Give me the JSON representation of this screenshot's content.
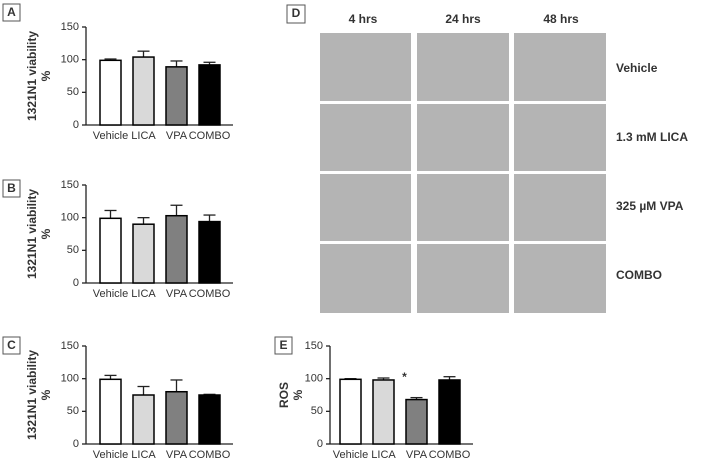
{
  "chart_data": [
    {
      "type": "bar",
      "panel": "A",
      "ylabel": [
        "1321N1 viability",
        "%"
      ],
      "categories": [
        "Vehicle",
        "LICA",
        "VPA",
        "COMBO"
      ],
      "values": [
        99,
        104,
        89,
        92
      ],
      "errors": [
        2,
        9,
        9,
        4
      ],
      "colors": [
        "#ffffff",
        "#d9d9d9",
        "#808080",
        "#000000"
      ],
      "ylim": [
        0,
        150
      ],
      "yticks": [
        0,
        50,
        100,
        150
      ]
    },
    {
      "type": "bar",
      "panel": "B",
      "ylabel": [
        "1321N1 viability",
        "%"
      ],
      "categories": [
        "Vehicle",
        "LICA",
        "VPA",
        "COMBO"
      ],
      "values": [
        99,
        90,
        103,
        94
      ],
      "errors": [
        12,
        10,
        16,
        10
      ],
      "colors": [
        "#ffffff",
        "#d9d9d9",
        "#808080",
        "#000000"
      ],
      "ylim": [
        0,
        150
      ],
      "yticks": [
        0,
        50,
        100,
        150
      ]
    },
    {
      "type": "bar",
      "panel": "C",
      "ylabel": [
        "1321N1 viability",
        "%"
      ],
      "categories": [
        "Vehicle",
        "LICA",
        "VPA",
        "COMBO"
      ],
      "values": [
        99,
        75,
        80,
        75
      ],
      "errors": [
        6,
        13,
        18,
        1
      ],
      "colors": [
        "#ffffff",
        "#d9d9d9",
        "#808080",
        "#000000"
      ],
      "ylim": [
        0,
        150
      ],
      "yticks": [
        0,
        50,
        100,
        150
      ]
    },
    {
      "type": "bar",
      "panel": "E",
      "ylabel": [
        "ROS",
        "%"
      ],
      "categories": [
        "Vehicle",
        "LICA",
        "VPA",
        "COMBO"
      ],
      "values": [
        99,
        98,
        68,
        98
      ],
      "errors": [
        1,
        3,
        3,
        5
      ],
      "colors": [
        "#ffffff",
        "#d9d9d9",
        "#808080",
        "#000000"
      ],
      "ylim": [
        0,
        150
      ],
      "yticks": [
        0,
        50,
        100,
        150
      ],
      "annotation": {
        "text": "*",
        "category": "VPA"
      }
    }
  ],
  "micrographs": {
    "panel": "D",
    "columns": [
      "4 hrs",
      "24 hrs",
      "48 hrs"
    ],
    "rows": [
      "Vehicle",
      "1.3 mM LICA",
      "325 µM VPA",
      "COMBO"
    ]
  }
}
